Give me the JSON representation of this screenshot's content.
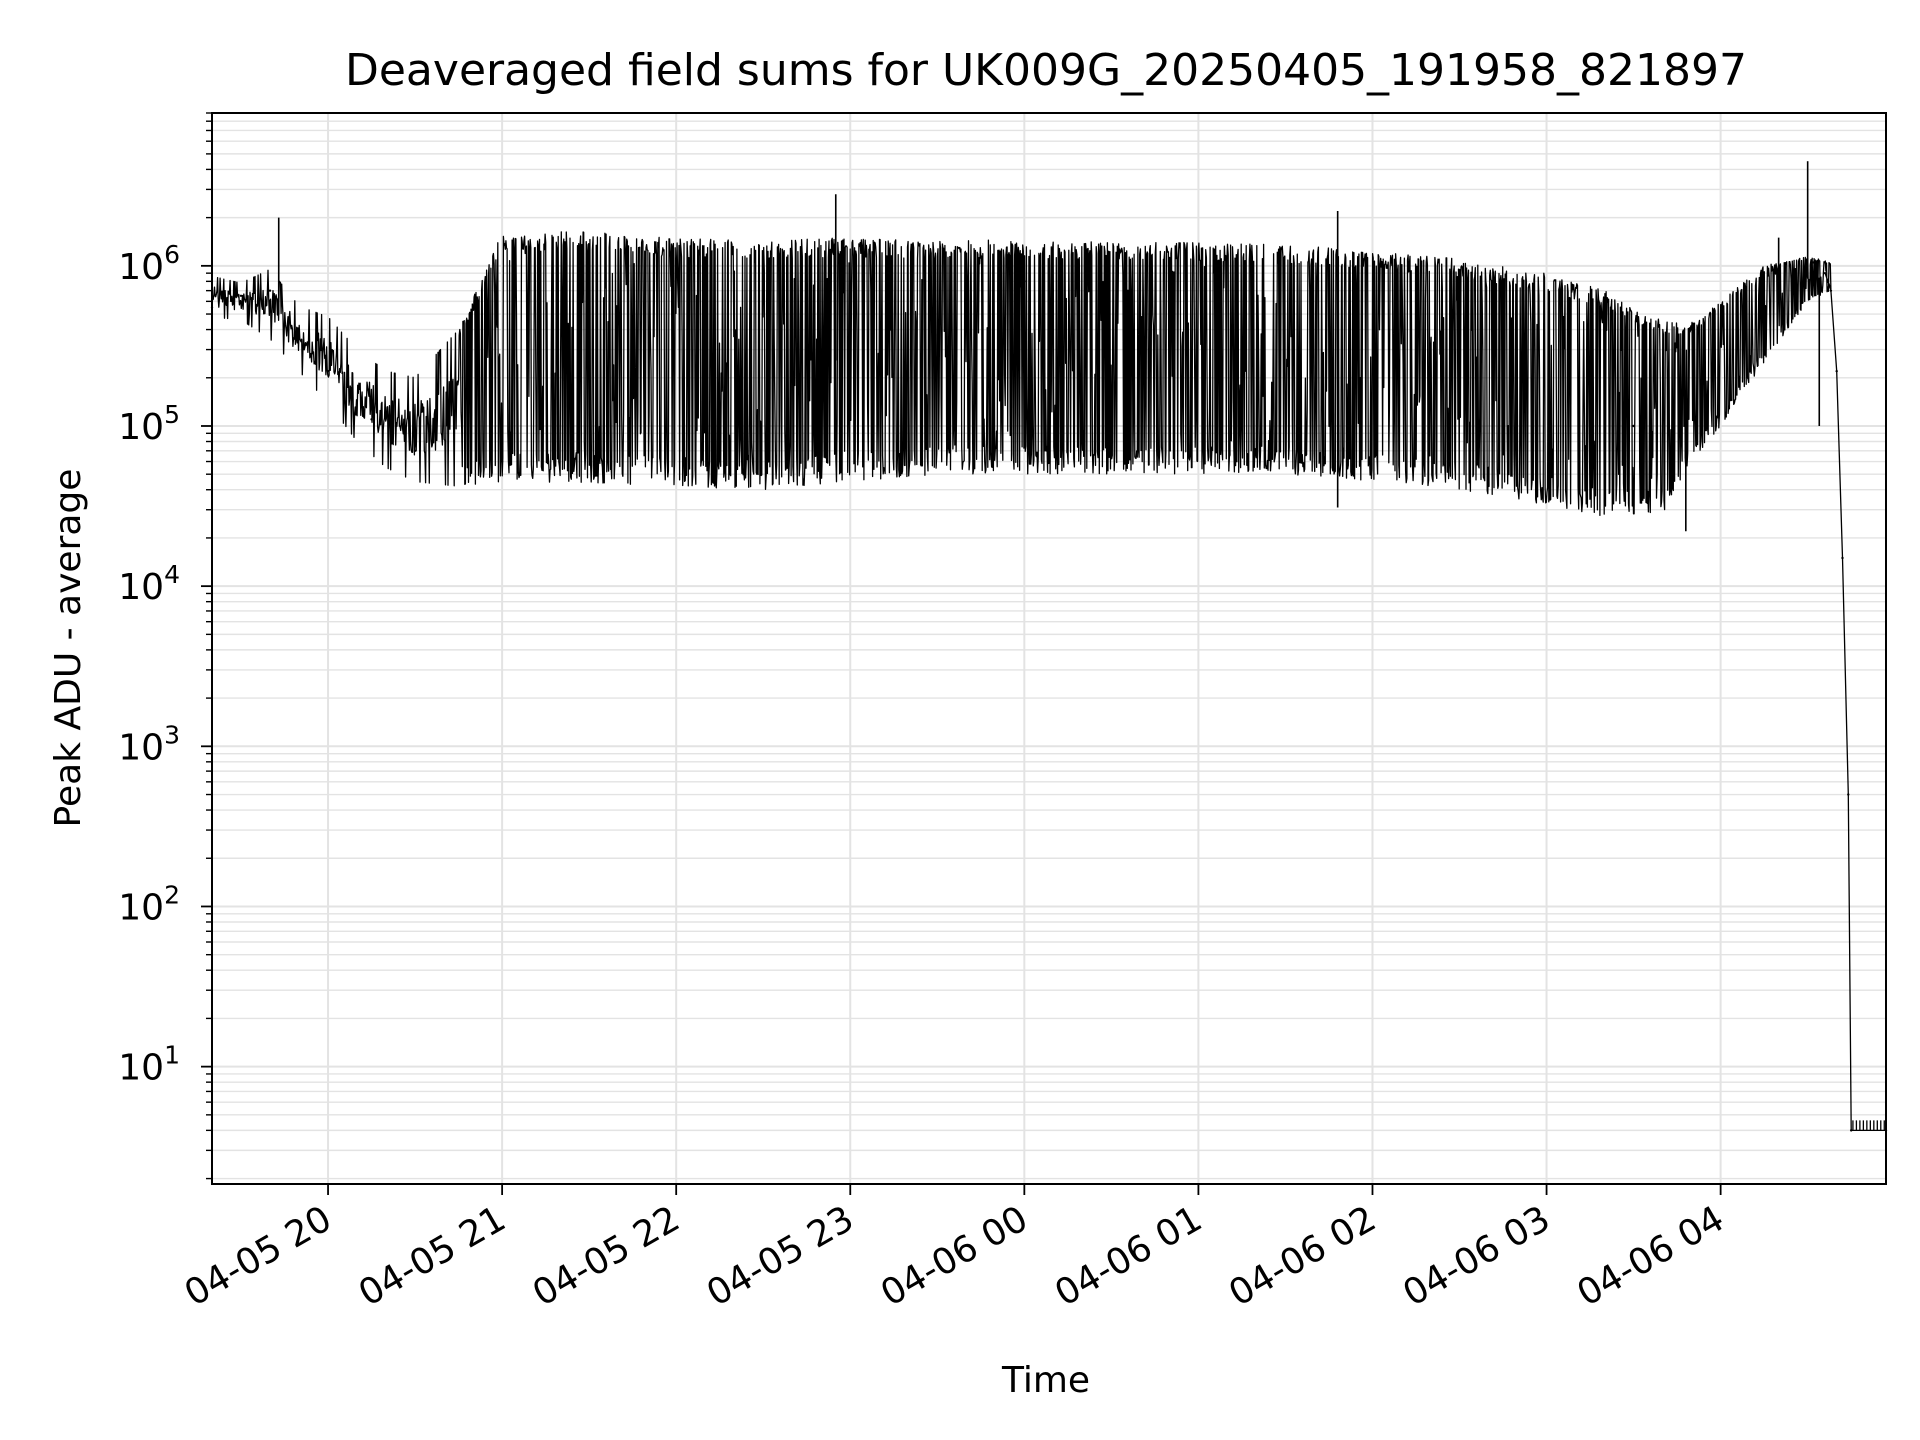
{
  "chart_data": {
    "type": "line",
    "title": "Deaveraged field sums for UK009G_20250405_191958_821897",
    "xlabel": "Time",
    "ylabel": "Peak ADU - average",
    "x_axis": {
      "scale": "time",
      "range": [
        "2025-04-05 19:20",
        "2025-04-06 04:57"
      ],
      "tick_values": [
        "2025-04-05 20:00",
        "2025-04-05 21:00",
        "2025-04-05 22:00",
        "2025-04-05 23:00",
        "2025-04-06 00:00",
        "2025-04-06 01:00",
        "2025-04-06 02:00",
        "2025-04-06 03:00",
        "2025-04-06 04:00"
      ],
      "tick_labels": [
        "04-05 20",
        "04-05 21",
        "04-05 22",
        "04-05 23",
        "04-06 00",
        "04-06 01",
        "04-06 02",
        "04-06 03",
        "04-06 04"
      ],
      "tick_label_rotation": "30deg"
    },
    "y_axis": {
      "scale": "log",
      "range": [
        1.85,
        9000000
      ],
      "tick_values": [
        10,
        100,
        1000,
        10000,
        100000,
        1000000
      ],
      "tick_base": "10",
      "tick_exponents": [
        "1",
        "2",
        "3",
        "4",
        "5",
        "6"
      ]
    },
    "grid": true,
    "legend": "none",
    "colors": {
      "line": "#000000",
      "grid": "#e3e3e3",
      "axes": "#000000"
    },
    "series": [
      {
        "envelope": [
          {
            "x": "2025-04-05 19:20",
            "low": 480000,
            "high": 860000
          },
          {
            "x": "2025-04-05 19:30",
            "low": 460000,
            "high": 780000
          },
          {
            "x": "2025-04-05 19:40",
            "low": 350000,
            "high": 950000
          },
          {
            "x": "2025-04-05 19:50",
            "low": 220000,
            "high": 560000
          },
          {
            "x": "2025-04-05 20:00",
            "low": 140000,
            "high": 480000
          },
          {
            "x": "2025-04-05 20:10",
            "low": 80000,
            "high": 300000
          },
          {
            "x": "2025-04-05 20:20",
            "low": 55000,
            "high": 220000
          },
          {
            "x": "2025-04-05 20:30",
            "low": 45000,
            "high": 200000
          },
          {
            "x": "2025-04-05 20:45",
            "low": 42000,
            "high": 400000
          },
          {
            "x": "2025-04-05 21:00",
            "low": 45000,
            "high": 1600000
          },
          {
            "x": "2025-04-05 21:30",
            "low": 44000,
            "high": 1650000
          },
          {
            "x": "2025-04-05 22:00",
            "low": 42000,
            "high": 1500000
          },
          {
            "x": "2025-04-05 22:30",
            "low": 40000,
            "high": 1450000
          },
          {
            "x": "2025-04-05 23:00",
            "low": 45000,
            "high": 1500000
          },
          {
            "x": "2025-04-05 23:30",
            "low": 50000,
            "high": 1450000
          },
          {
            "x": "2025-04-06 00:00",
            "low": 50000,
            "high": 1450000
          },
          {
            "x": "2025-04-06 00:30",
            "low": 50000,
            "high": 1400000
          },
          {
            "x": "2025-04-06 01:00",
            "low": 50000,
            "high": 1400000
          },
          {
            "x": "2025-04-06 01:30",
            "low": 50000,
            "high": 1350000
          },
          {
            "x": "2025-04-06 02:00",
            "low": 45000,
            "high": 1250000
          },
          {
            "x": "2025-04-06 02:30",
            "low": 40000,
            "high": 1100000
          },
          {
            "x": "2025-04-06 03:00",
            "low": 32000,
            "high": 900000
          },
          {
            "x": "2025-04-06 03:20",
            "low": 27000,
            "high": 700000
          },
          {
            "x": "2025-04-06 03:40",
            "low": 28000,
            "high": 450000
          },
          {
            "x": "2025-04-06 03:50",
            "low": 60000,
            "high": 450000
          },
          {
            "x": "2025-04-06 04:00",
            "low": 100000,
            "high": 600000
          },
          {
            "x": "2025-04-06 04:15",
            "low": 250000,
            "high": 1000000
          },
          {
            "x": "2025-04-06 04:30",
            "low": 600000,
            "high": 1150000
          },
          {
            "x": "2025-04-06 04:38",
            "low": 700000,
            "high": 1050000
          }
        ],
        "points": [
          {
            "x": "2025-04-05 19:20",
            "y": 550000
          },
          {
            "x": "2025-04-05 19:30",
            "y": 650000
          },
          {
            "x": "2025-04-05 19:40",
            "y": 700000
          },
          {
            "x": "2025-04-05 19:50",
            "y": 350000
          },
          {
            "x": "2025-04-05 20:00",
            "y": 220000
          },
          {
            "x": "2025-04-05 20:15",
            "y": 110000
          },
          {
            "x": "2025-04-05 20:30",
            "y": 70000
          },
          {
            "x": "2025-04-05 21:00",
            "y": 60000
          },
          {
            "x": "2025-04-06 00:00",
            "y": 800000
          },
          {
            "x": "2025-04-06 03:30",
            "y": 100000
          },
          {
            "x": "2025-04-06 04:20",
            "y": 700000
          },
          {
            "x": "2025-04-06 04:32",
            "y": 1050000
          },
          {
            "x": "2025-04-06 04:36",
            "y": 900000
          },
          {
            "x": "2025-04-06 04:38",
            "y": 700000
          },
          {
            "x": "2025-04-06 04:40",
            "y": 220000
          },
          {
            "x": "2025-04-06 04:42",
            "y": 15000
          },
          {
            "x": "2025-04-06 04:44",
            "y": 500
          },
          {
            "x": "2025-04-06 04:45",
            "y": 4
          },
          {
            "x": "2025-04-06 04:57",
            "y": 4
          }
        ],
        "spikes": [
          {
            "x": "2025-04-05 19:43",
            "y": 2000000
          },
          {
            "x": "2025-04-05 22:55",
            "y": 2800000
          },
          {
            "x": "2025-04-06 01:48",
            "y": 2200000
          },
          {
            "x": "2025-04-06 04:20",
            "y": 1500000
          },
          {
            "x": "2025-04-06 04:30",
            "y": 4500000
          }
        ],
        "dips": [
          {
            "x": "2025-04-06 01:48",
            "y": 31000
          },
          {
            "x": "2025-04-06 03:48",
            "y": 22000
          },
          {
            "x": "2025-04-06 04:34",
            "y": 100000
          }
        ]
      }
    ]
  }
}
